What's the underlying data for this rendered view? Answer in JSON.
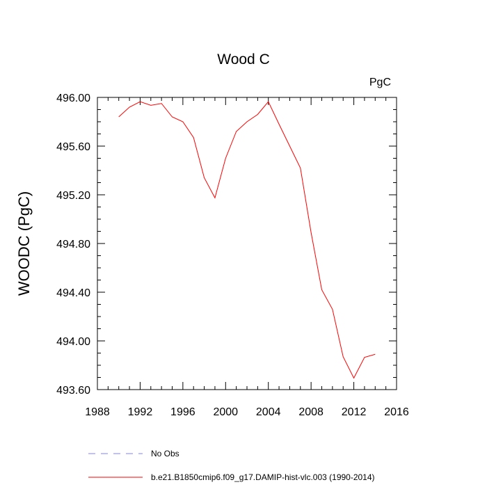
{
  "chart_data": {
    "type": "line",
    "title": "Wood C",
    "units_label": "PgC",
    "ylabel": "WOODC  (PgC)",
    "xlabel": "",
    "xlim": [
      1988,
      2016
    ],
    "ylim": [
      493.6,
      496.0
    ],
    "x_ticks": [
      1988,
      1992,
      1996,
      2000,
      2004,
      2008,
      2012,
      2016
    ],
    "x_tick_labels": [
      "1988",
      "1992",
      "1996",
      "2000",
      "2004",
      "2008",
      "2012",
      "2016"
    ],
    "y_ticks": [
      493.6,
      494.0,
      494.4,
      494.8,
      495.2,
      495.6,
      496.0
    ],
    "y_tick_labels": [
      "493.60",
      "494.00",
      "494.40",
      "494.80",
      "495.20",
      "495.60",
      "496.00"
    ],
    "grid": false,
    "legend_position": "bottom",
    "series": [
      {
        "name": "b.e21.B1850cmip6.f09_g17.DAMIP-hist-vlc.003 (1990-2014)",
        "color": "#ff0000",
        "style": "solid",
        "x": [
          1990,
          1991,
          1992,
          1993,
          1994,
          1995,
          1996,
          1997,
          1998,
          1999,
          2000,
          2001,
          2002,
          2003,
          2004,
          2005,
          2006,
          2007,
          2008,
          2009,
          2010,
          2011,
          2012,
          2013,
          2014
        ],
        "y": [
          495.84,
          495.92,
          495.965,
          495.935,
          495.95,
          495.84,
          495.8,
          495.67,
          495.34,
          495.175,
          495.5,
          495.72,
          495.8,
          495.86,
          495.965,
          495.78,
          495.6,
          495.42,
          494.89,
          494.42,
          494.26,
          493.87,
          493.695,
          493.865,
          493.89
        ]
      }
    ],
    "legend": [
      {
        "label": "No Obs",
        "color": "#8080ff",
        "style": "dashed"
      },
      {
        "label": "b.e21.B1850cmip6.f09_g17.DAMIP-hist-vlc.003 (1990-2014)",
        "color": "#ff0000",
        "style": "solid"
      }
    ]
  }
}
